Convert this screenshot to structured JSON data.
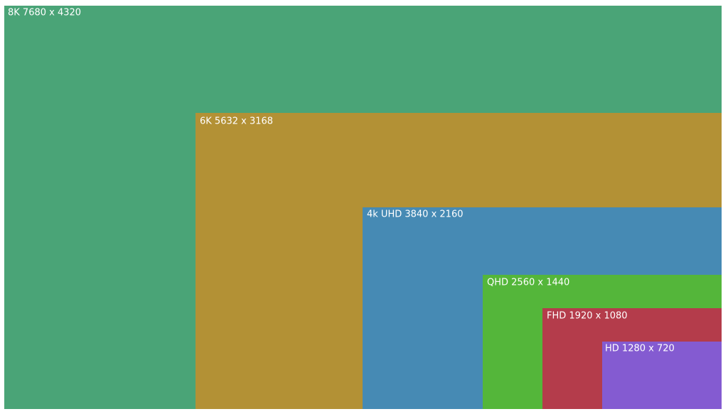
{
  "nodes": [
    {
      "label": "8K 7680 x 4320"
    },
    {
      "label": "6K 5632 x 3168"
    },
    {
      "label": "4k UHD 3840 x 2160"
    },
    {
      "label": "QHD 2560 x 1440"
    },
    {
      "label": "FHD 1920 x 1080"
    },
    {
      "label": "HD 1280 x 720"
    }
  ]
}
